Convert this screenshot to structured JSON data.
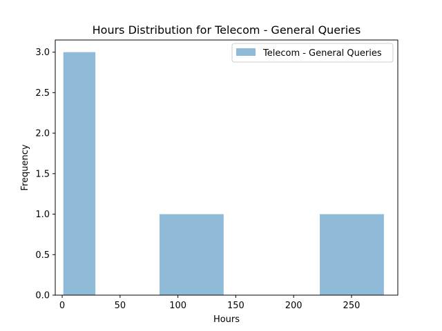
{
  "chart_data": {
    "type": "bar",
    "title": "Hours Distribution for Telecom - General Queries",
    "xlabel": "Hours",
    "ylabel": "Frequency",
    "xlim": [
      -6,
      290
    ],
    "ylim": [
      0,
      3.15
    ],
    "xticks": [
      0,
      50,
      100,
      150,
      200,
      250
    ],
    "yticks": [
      0.0,
      0.5,
      1.0,
      1.5,
      2.0,
      2.5,
      3.0
    ],
    "ytick_labels": [
      "0.0",
      "0.5",
      "1.0",
      "1.5",
      "2.0",
      "2.5",
      "3.0"
    ],
    "series": [
      {
        "name": "Telecom - General Queries",
        "color": "#8fbbd9",
        "bins": [
          {
            "x0": 1,
            "x1": 28.7,
            "count": 3
          },
          {
            "x0": 28.7,
            "x1": 56.4,
            "count": 0
          },
          {
            "x0": 56.4,
            "x1": 84.1,
            "count": 0
          },
          {
            "x0": 84.1,
            "x1": 139.5,
            "count": 1
          },
          {
            "x0": 139.5,
            "x1": 167.2,
            "count": 0
          },
          {
            "x0": 167.2,
            "x1": 194.9,
            "count": 0
          },
          {
            "x0": 194.9,
            "x1": 222.6,
            "count": 0
          },
          {
            "x0": 222.6,
            "x1": 278,
            "count": 1
          }
        ]
      }
    ],
    "legend_position": "top-right",
    "grid": false
  }
}
